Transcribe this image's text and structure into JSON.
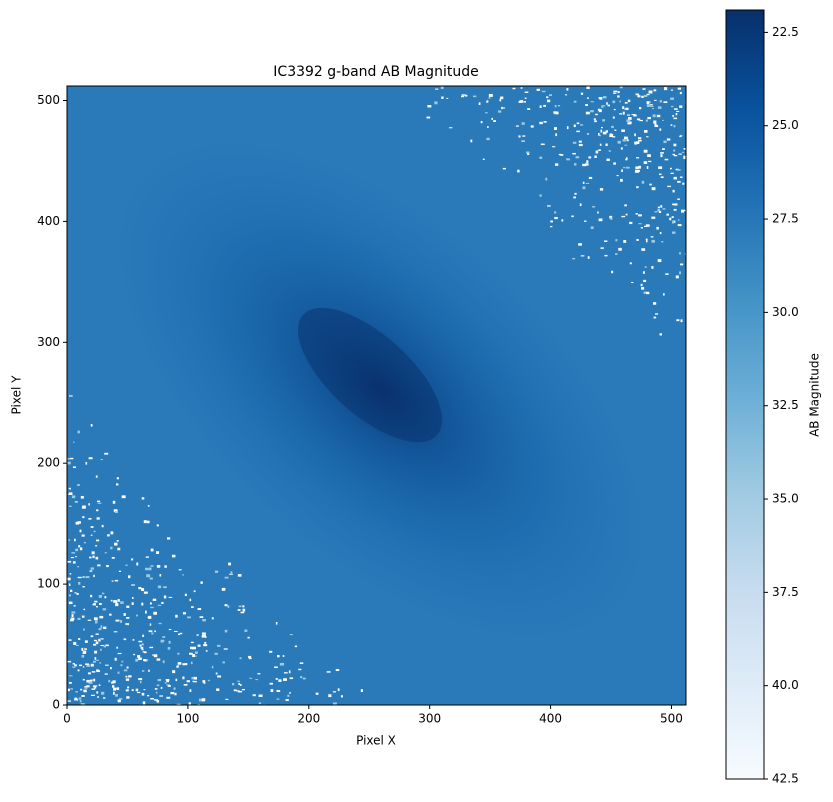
{
  "chart_data": {
    "type": "image",
    "title": "IC3392 g-band AB Magnitude",
    "x_label": "Pixel X",
    "y_label": "Pixel Y",
    "xlim": [
      0,
      512
    ],
    "ylim": [
      0,
      512
    ],
    "xticks": [
      0,
      100,
      200,
      300,
      400,
      500
    ],
    "yticks": [
      0,
      100,
      200,
      300,
      400,
      500
    ],
    "colorbar": {
      "label": "AB Magnitude",
      "lim": [
        42.5,
        21.9
      ],
      "ticks": [
        22.5,
        {
          "value": 25,
          "label": "25.0"
        },
        27.5,
        {
          "value": 30,
          "label": "30.0"
        },
        32.5,
        {
          "value": 35,
          "label": "35.0"
        },
        37.5,
        {
          "value": 40,
          "label": "40.0"
        },
        42.5
      ],
      "colormap": [
        "#f7fbff",
        "#deebf7",
        "#c6dbef",
        "#9ecae1",
        "#6baed6",
        "#4292c6",
        "#2171b5",
        "#08519c",
        "#08306b"
      ]
    }
  }
}
